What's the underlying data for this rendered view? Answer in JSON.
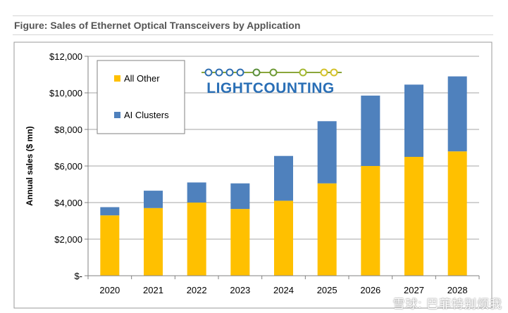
{
  "page": {
    "title": "Figure: Sales of Ethernet Optical Transceivers by Application"
  },
  "logo": {
    "text": "LIGHTCOUNTING"
  },
  "watermark": {
    "text": "雪球: 巴菲特别烦我"
  },
  "chart_data": {
    "type": "bar",
    "stacked": true,
    "title": "",
    "xlabel": "",
    "ylabel": "Annual sales ($ mn)",
    "categories": [
      "2020",
      "2021",
      "2022",
      "2023",
      "2024",
      "2025",
      "2026",
      "2027",
      "2028"
    ],
    "series": [
      {
        "name": "All Other",
        "color": "#FFC000",
        "values": [
          3300,
          3700,
          4000,
          3650,
          4100,
          5050,
          6000,
          6500,
          6800
        ]
      },
      {
        "name": "AI Clusters",
        "color": "#4F81BD",
        "values": [
          450,
          950,
          1100,
          1400,
          2450,
          3400,
          3850,
          3950,
          4100
        ]
      }
    ],
    "ylim": [
      0,
      12000
    ],
    "yticks": [
      0,
      2000,
      4000,
      6000,
      8000,
      10000,
      12000
    ],
    "ytick_labels": [
      "$-",
      "$2,000",
      "$4,000",
      "$6,000",
      "$8,000",
      "$10,000",
      "$12,000"
    ],
    "grid": true,
    "legend": {
      "placement": "top-left",
      "entries": [
        "All Other",
        "AI Clusters"
      ]
    }
  }
}
